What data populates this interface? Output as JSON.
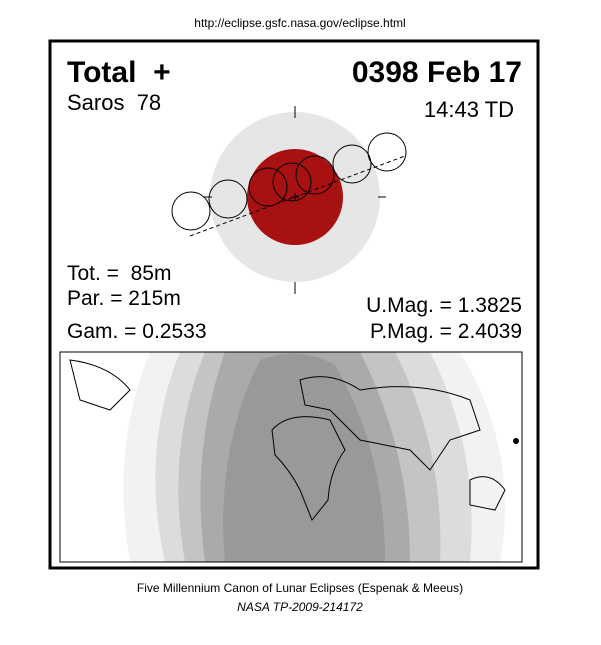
{
  "header": {
    "url": "http://eclipse.gsfc.nasa.gov/eclipse.html"
  },
  "eclipse": {
    "type": "Total  +",
    "date": "0398 Feb 17",
    "saros": "Saros  78",
    "time": "14:43 TD"
  },
  "stats": {
    "tot": "Tot. =  85m",
    "par": "Par. = 215m",
    "gam": "Gam. = 0.2533",
    "umag": "U.Mag. = 1.3825",
    "pmag": "P.Mag. = 2.4039"
  },
  "footer": {
    "line1": "Five Millennium Canon of Lunar Eclipses (Espenak & Meeus)",
    "line2": "NASA TP-2009-214172"
  }
}
